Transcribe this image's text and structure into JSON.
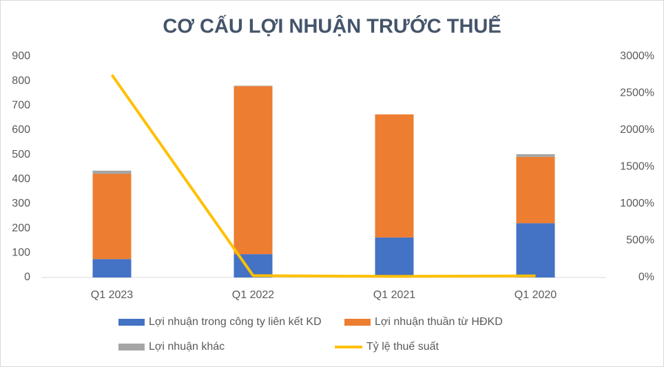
{
  "chart_data": {
    "type": "bar",
    "stacked": true,
    "title": "CƠ CẤU LỢI NHUẬN TRƯỚC THUẾ",
    "categories": [
      "Q1 2023",
      "Q1 2022",
      "Q1 2021",
      "Q1 2020"
    ],
    "series": [
      {
        "name": "Lợi nhuận trong công ty liên kết KD",
        "color": "#4472c4",
        "values": [
          75,
          95,
          163,
          221
        ]
      },
      {
        "name": "Lợi nhuận thuần từ HĐKD",
        "color": "#ed7d31",
        "values": [
          347,
          684,
          501,
          270
        ]
      },
      {
        "name": "Lợi nhuận khác",
        "color": "#a5a5a5",
        "values": [
          13,
          2,
          0,
          11
        ]
      },
      {
        "name": "Tỷ lệ thuế suất",
        "color": "#ffc000",
        "type": "line",
        "axis": "y2",
        "values": [
          2750,
          25,
          15,
          22
        ]
      }
    ],
    "ylim": [
      0,
      900
    ],
    "yticks": [
      0,
      100,
      200,
      300,
      400,
      500,
      600,
      700,
      800,
      900
    ],
    "y2lim": [
      0,
      3000
    ],
    "y2ticks": [
      {
        "value": 0,
        "label": "0%"
      },
      {
        "value": 500,
        "label": "500%"
      },
      {
        "value": 1000,
        "label": "1000%"
      },
      {
        "value": 1500,
        "label": "1500%"
      },
      {
        "value": 2000,
        "label": "2000%"
      },
      {
        "value": 2500,
        "label": "2500%"
      },
      {
        "value": 3000,
        "label": "3000%"
      }
    ],
    "grid": false,
    "legend": "bottom"
  }
}
